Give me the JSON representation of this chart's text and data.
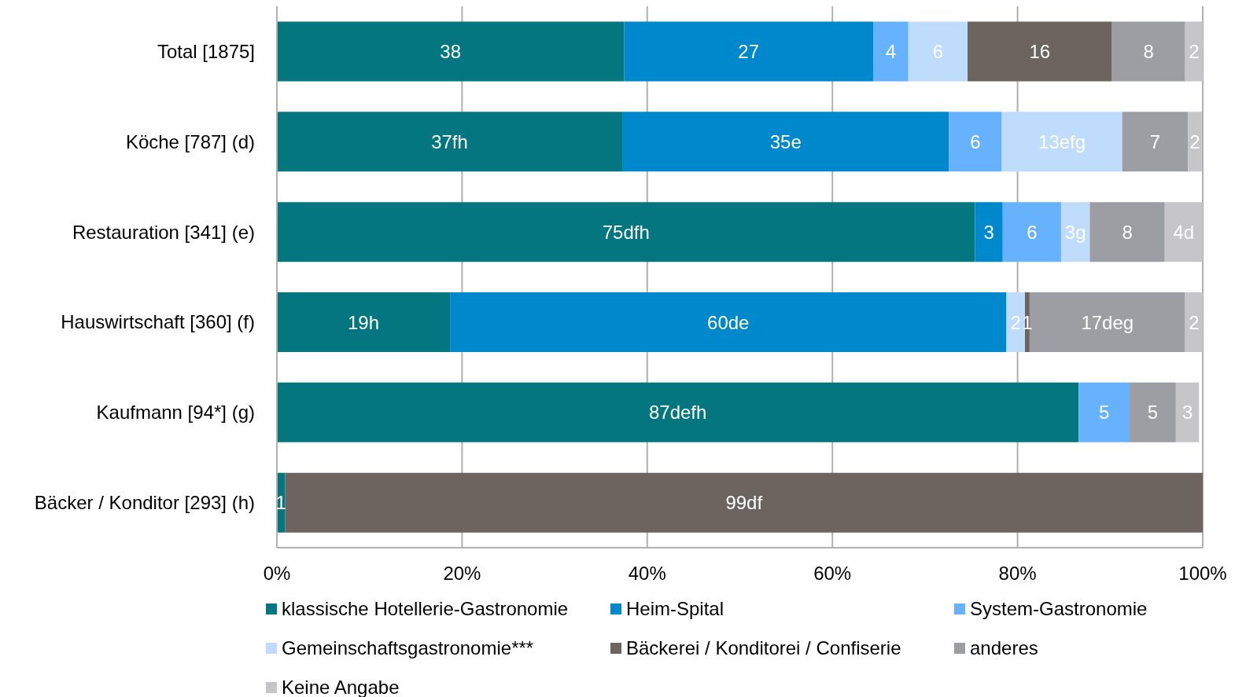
{
  "chart_data": {
    "type": "bar",
    "orientation": "horizontal",
    "stacked": true,
    "categories": [
      "Total [1875]",
      "Köche [787] (d)",
      "Restauration [341] (e)",
      "Hauswirtschaft [360] (f)",
      "Kaufmann [94*] (g)",
      "Bäcker / Konditor [293] (h)"
    ],
    "xlim": [
      0,
      100
    ],
    "xticks": [
      {
        "value": 0,
        "label": "0%"
      },
      {
        "value": 20,
        "label": "20%"
      },
      {
        "value": 40,
        "label": "40%"
      },
      {
        "value": 60,
        "label": "60%"
      },
      {
        "value": 80,
        "label": "80%"
      },
      {
        "value": 100,
        "label": "100%"
      }
    ],
    "grid": "x",
    "legend": "bottom",
    "series": [
      {
        "name": "klassische Hotellerie-Gastronomie",
        "color": "#03767f",
        "values": [
          37.5,
          37.3,
          75.4,
          18.7,
          86.6,
          0.9
        ],
        "value_labels": [
          "38",
          "37fh",
          "75dfh",
          "19h",
          "87defh",
          "1"
        ]
      },
      {
        "name": "Heim-Spital",
        "color": "#0088cc",
        "values": [
          26.9,
          35.3,
          3.0,
          60.1,
          null,
          null
        ],
        "value_labels": [
          "27",
          "35e",
          "3",
          "60de",
          null,
          null
        ]
      },
      {
        "name": "System-Gastronomie",
        "color": "#66b2ff",
        "values": [
          3.8,
          5.7,
          6.3,
          null,
          5.5,
          null
        ],
        "value_labels": [
          "4",
          "6",
          "6",
          null,
          "5",
          null
        ]
      },
      {
        "name": "Gemeinschaftsgastronomie***",
        "color": "#c0dcfc",
        "values": [
          6.4,
          13.0,
          3.1,
          2.0,
          null,
          null
        ],
        "value_labels": [
          "6",
          "13efg",
          "3g",
          "2",
          null,
          null
        ]
      },
      {
        "name": "Bäckerei / Konditorei / Confiserie",
        "color": "#6e645f",
        "values": [
          15.6,
          null,
          null,
          0.5,
          null,
          99.1
        ],
        "value_labels": [
          "16",
          null,
          null,
          "1",
          null,
          "99df"
        ]
      },
      {
        "name": "anderes",
        "color": "#9c9ea4",
        "values": [
          7.9,
          7.1,
          8.1,
          16.8,
          5.0,
          null
        ],
        "value_labels": [
          "8",
          "7",
          "8",
          "17deg",
          "5",
          null
        ]
      },
      {
        "name": "Keine Angabe",
        "color": "#c6c6ca",
        "values": [
          1.9,
          1.5,
          4.1,
          1.9,
          2.5,
          null
        ],
        "value_labels": [
          "2",
          "2",
          "4d",
          "2",
          "3",
          null
        ]
      }
    ]
  }
}
